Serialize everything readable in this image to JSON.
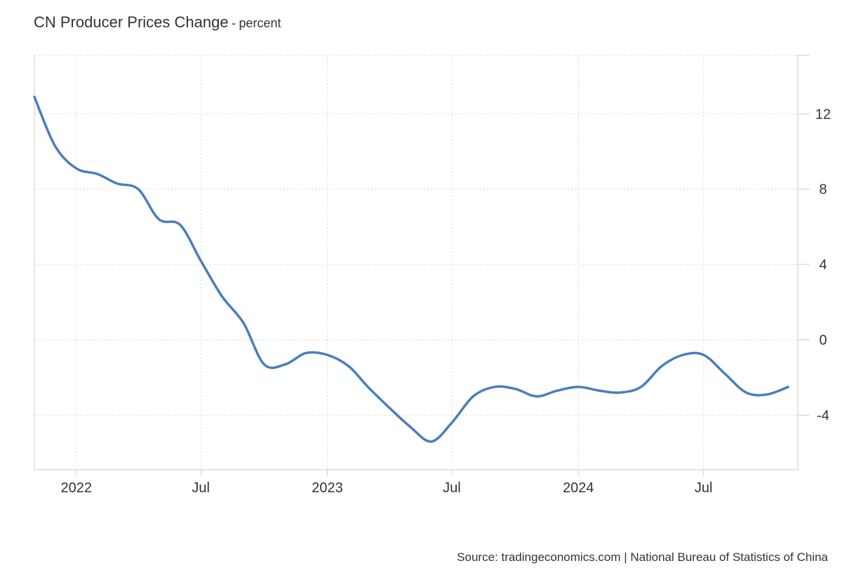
{
  "header": {
    "title": "CN Producer Prices Change",
    "separator": "-",
    "unit": "percent"
  },
  "source": "Source: tradingeconomics.com | National Bureau of Statistics of China",
  "colors": {
    "line": "#4a7ebb",
    "grid": "#d8d8d8",
    "axis": "#cccccc",
    "text": "#333333"
  },
  "chart_data": {
    "type": "line",
    "title": "CN Producer Prices Change",
    "ylabel": "",
    "xlabel": "",
    "ylim": [
      -6.9,
      15.1
    ],
    "xlim": [
      "2021-11-01",
      "2024-11-15"
    ],
    "grid": true,
    "y_axis_position": "right",
    "y_ticks": [
      12,
      8,
      4,
      0,
      -4
    ],
    "x_ticks": [
      {
        "date": "2022-01-01",
        "label": "2022"
      },
      {
        "date": "2022-07-01",
        "label": "Jul"
      },
      {
        "date": "2023-01-01",
        "label": "2023"
      },
      {
        "date": "2023-07-01",
        "label": "Jul"
      },
      {
        "date": "2024-01-01",
        "label": "2024"
      },
      {
        "date": "2024-07-01",
        "label": "Jul"
      }
    ],
    "series": [
      {
        "points": [
          {
            "x": "2021-11-01",
            "y": 12.9
          },
          {
            "x": "2021-12-01",
            "y": 10.3
          },
          {
            "x": "2022-01-01",
            "y": 9.1
          },
          {
            "x": "2022-02-01",
            "y": 8.8
          },
          {
            "x": "2022-03-01",
            "y": 8.3
          },
          {
            "x": "2022-04-01",
            "y": 8.0
          },
          {
            "x": "2022-05-01",
            "y": 6.4
          },
          {
            "x": "2022-06-01",
            "y": 6.1
          },
          {
            "x": "2022-07-01",
            "y": 4.2
          },
          {
            "x": "2022-08-01",
            "y": 2.3
          },
          {
            "x": "2022-09-01",
            "y": 0.9
          },
          {
            "x": "2022-10-01",
            "y": -1.3
          },
          {
            "x": "2022-11-01",
            "y": -1.3
          },
          {
            "x": "2022-12-01",
            "y": -0.7
          },
          {
            "x": "2023-01-01",
            "y": -0.8
          },
          {
            "x": "2023-02-01",
            "y": -1.4
          },
          {
            "x": "2023-03-01",
            "y": -2.5
          },
          {
            "x": "2023-04-01",
            "y": -3.6
          },
          {
            "x": "2023-05-01",
            "y": -4.6
          },
          {
            "x": "2023-06-01",
            "y": -5.4
          },
          {
            "x": "2023-07-01",
            "y": -4.4
          },
          {
            "x": "2023-08-01",
            "y": -3.0
          },
          {
            "x": "2023-09-01",
            "y": -2.5
          },
          {
            "x": "2023-10-01",
            "y": -2.6
          },
          {
            "x": "2023-11-01",
            "y": -3.0
          },
          {
            "x": "2023-12-01",
            "y": -2.7
          },
          {
            "x": "2024-01-01",
            "y": -2.5
          },
          {
            "x": "2024-02-01",
            "y": -2.7
          },
          {
            "x": "2024-03-01",
            "y": -2.8
          },
          {
            "x": "2024-04-01",
            "y": -2.5
          },
          {
            "x": "2024-05-01",
            "y": -1.4
          },
          {
            "x": "2024-06-01",
            "y": -0.8
          },
          {
            "x": "2024-07-01",
            "y": -0.8
          },
          {
            "x": "2024-08-01",
            "y": -1.8
          },
          {
            "x": "2024-09-01",
            "y": -2.8
          },
          {
            "x": "2024-10-01",
            "y": -2.9
          },
          {
            "x": "2024-11-01",
            "y": -2.5
          }
        ]
      }
    ]
  }
}
